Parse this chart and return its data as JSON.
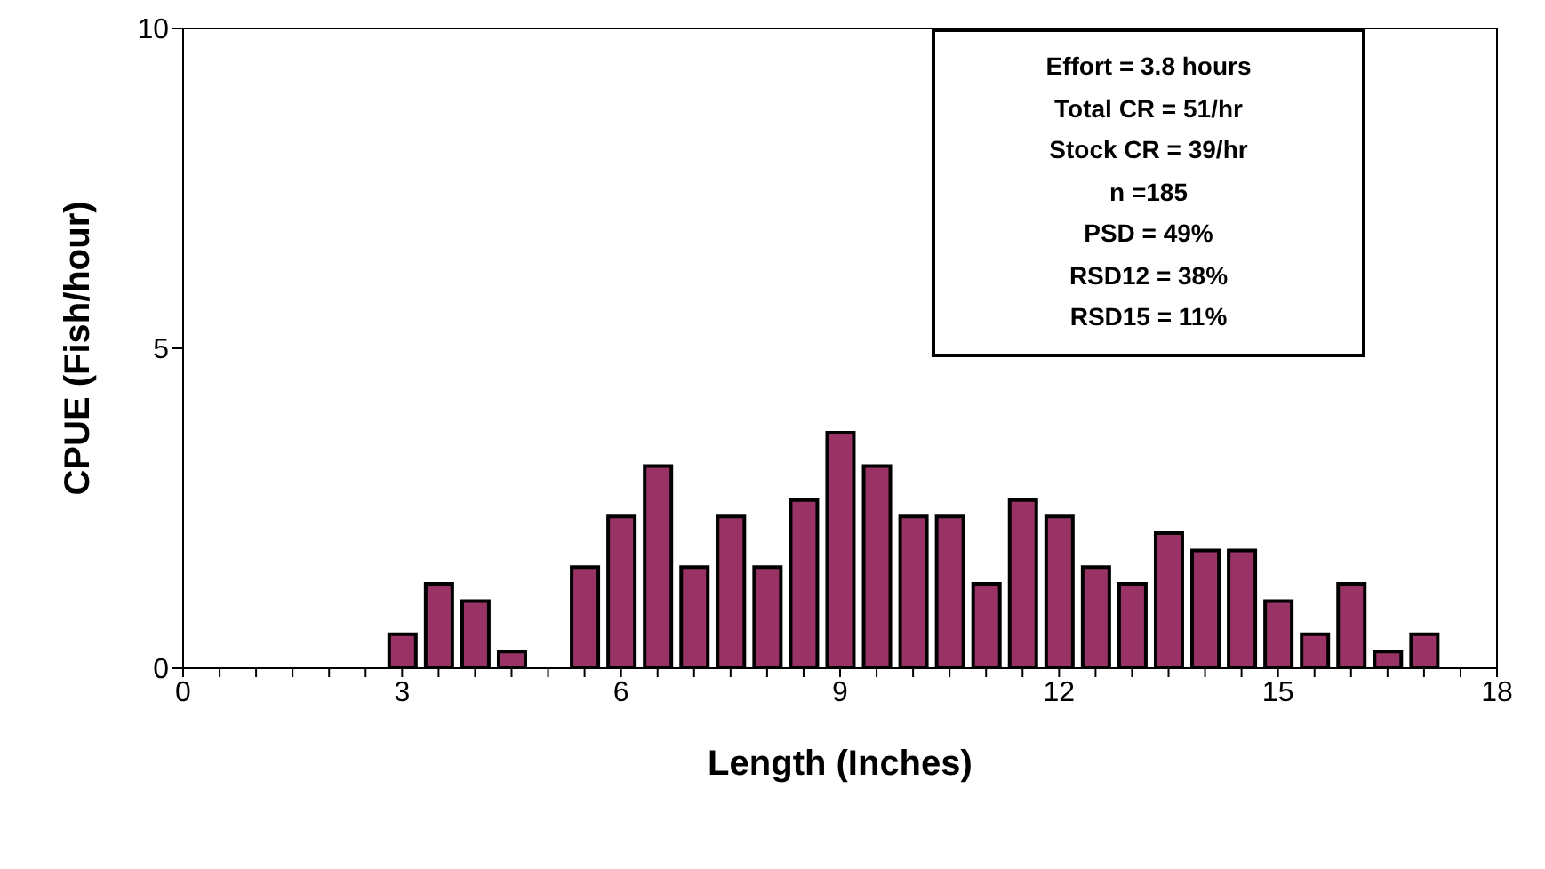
{
  "chart_data": {
    "type": "bar",
    "xlabel": "Length (Inches)",
    "ylabel": "CPUE (Fish/hour)",
    "x": [
      3,
      3.5,
      4,
      4.5,
      5.5,
      6,
      6.5,
      7,
      7.5,
      8,
      8.5,
      9,
      9.5,
      10,
      10.5,
      11,
      11.5,
      12,
      12.5,
      13,
      13.5,
      14,
      14.5,
      15,
      15.5,
      16,
      16.5,
      17
    ],
    "values": [
      0.53,
      1.32,
      1.05,
      0.26,
      1.58,
      2.37,
      3.16,
      1.58,
      2.37,
      1.58,
      2.63,
      3.68,
      3.16,
      2.37,
      2.37,
      1.32,
      2.63,
      2.37,
      1.58,
      1.32,
      2.11,
      1.84,
      1.84,
      1.05,
      0.53,
      1.32,
      0.26,
      0.53
    ],
    "color": "#993366",
    "xlim": [
      0,
      18
    ],
    "xticks": [
      0,
      {
        "value": 0.5,
        "label": null
      },
      {
        "value": 1,
        "label": null
      },
      {
        "value": 1.5,
        "label": null
      },
      {
        "value": 2,
        "label": null
      },
      {
        "value": 2.5,
        "label": null
      },
      3,
      {
        "value": 3.5,
        "label": null
      },
      {
        "value": 4,
        "label": null
      },
      {
        "value": 4.5,
        "label": null
      },
      {
        "value": 5,
        "label": null
      },
      {
        "value": 5.5,
        "label": null
      },
      6,
      {
        "value": 6.5,
        "label": null
      },
      {
        "value": 7,
        "label": null
      },
      {
        "value": 7.5,
        "label": null
      },
      {
        "value": 8,
        "label": null
      },
      {
        "value": 8.5,
        "label": null
      },
      9,
      {
        "value": 9.5,
        "label": null
      },
      {
        "value": 10,
        "label": null
      },
      {
        "value": 10.5,
        "label": null
      },
      {
        "value": 11,
        "label": null
      },
      {
        "value": 11.5,
        "label": null
      },
      12,
      {
        "value": 12.5,
        "label": null
      },
      {
        "value": 13,
        "label": null
      },
      {
        "value": 13.5,
        "label": null
      },
      {
        "value": 14,
        "label": null
      },
      {
        "value": 14.5,
        "label": null
      },
      15,
      {
        "value": 15.5,
        "label": null
      },
      {
        "value": 16,
        "label": null
      },
      {
        "value": 16.5,
        "label": null
      },
      {
        "value": 17,
        "label": null
      },
      {
        "value": 17.5,
        "label": null
      },
      18
    ],
    "ylim": [
      0,
      10
    ],
    "yticks": [
      0,
      5,
      10
    ],
    "grid": false,
    "legend": false,
    "annotations": [
      "Effort = 3.8 hours",
      "Total CR = 51/hr",
      "Stock CR = 39/hr",
      "n =185",
      "PSD = 49%",
      "RSD12 = 38%",
      "RSD15 = 11%"
    ]
  }
}
